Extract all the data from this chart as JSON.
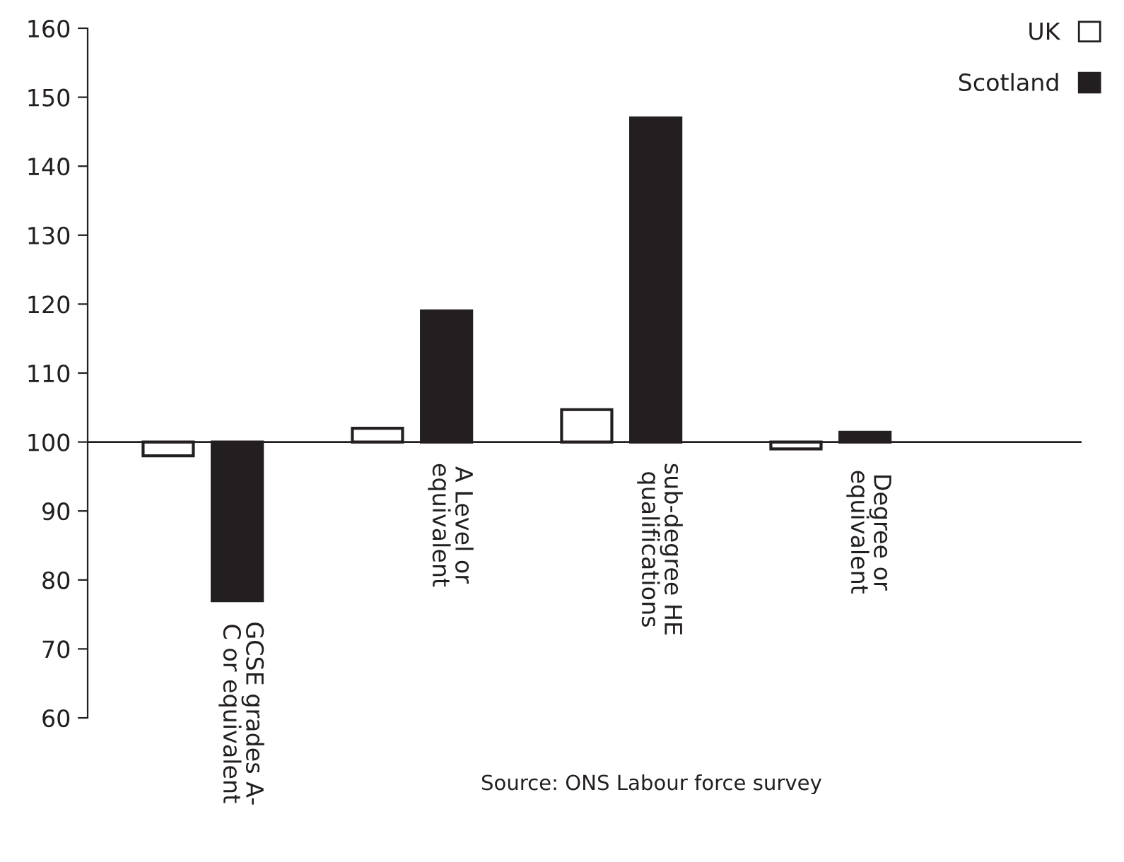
{
  "chart_data": {
    "type": "bar",
    "categories": [
      "GCSE grades A-\nC or equivalent",
      "A Level or\nequivalent",
      "sub-degree HE\nqualifications",
      "Degree or\nequivalent"
    ],
    "series": [
      {
        "name": "UK",
        "color": "#ffffff",
        "values": [
          -2,
          2,
          4.7,
          -1
        ],
        "base": [
          100,
          100,
          100,
          100
        ]
      },
      {
        "name": "Scotland",
        "color": "#231f20",
        "values": [
          -23,
          19,
          47,
          1.4
        ],
        "base": [
          100,
          100,
          100,
          100
        ]
      }
    ],
    "ylim": [
      60,
      160
    ],
    "yticks": [
      60,
      70,
      80,
      90,
      100,
      110,
      120,
      130,
      140,
      150,
      160
    ],
    "grid": false,
    "legend": "top right",
    "annotations": [
      "Source: ONS Labour force survey"
    ]
  }
}
